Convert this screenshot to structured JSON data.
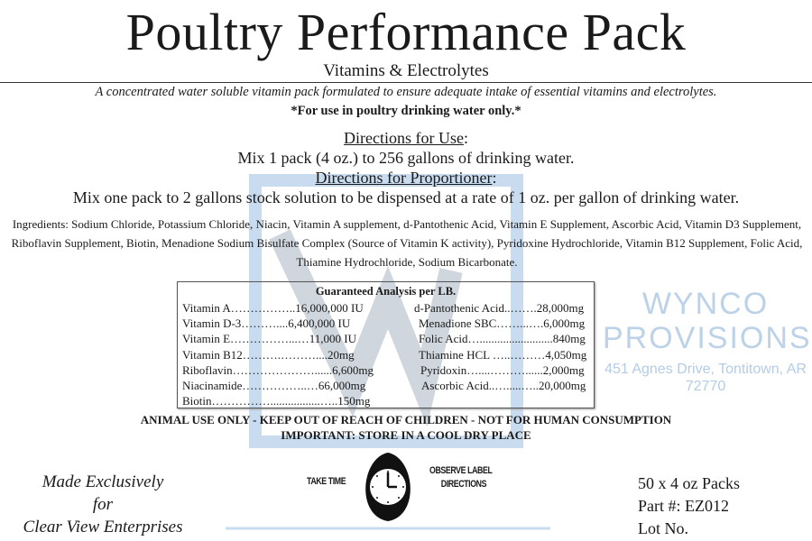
{
  "title": "Poultry Performance Pack",
  "subtitle": "Vitamins & Electrolytes",
  "description": "A concentrated water soluble vitamin pack formulated to ensure adequate intake of essential vitamins and electrolytes.",
  "use_note": "*For use in poultry drinking water only.*",
  "directions": {
    "use_heading": "Directions for Use",
    "use_text": "Mix 1 pack (4 oz.) to 256 gallons of drinking water.",
    "proportioner_heading": "Directions for Proportioner",
    "proportioner_text": "Mix one pack to 2 gallons stock solution to be dispensed at a rate of 1 oz. per gallon of drinking water."
  },
  "ingredients": "Ingredients:  Sodium Chloride, Potassium Chloride, Niacin, Vitamin A supplement, d-Pantothenic Acid, Vitamin E Supplement, Ascorbic Acid, Vitamin D3 Supplement, Riboflavin Supplement, Biotin, Menadione Sodium Bisulfate Complex (Source of Vitamin K activity), Pyridoxine Hydrochloride, Vitamin B12 Supplement, Folic Acid, Thiamine Hydrochloride, Sodium Bicarbonate.",
  "analysis": {
    "heading": "Guaranteed Analysis per LB.",
    "left": [
      "Vitamin A……………..16,000,000 IU",
      "Vitamin D-3………....6,400,000 IU",
      "Vitamin E……………...…11,000 IU",
      "Vitamin B12……….………....20mg",
      "Riboflavin…………………......6,600mg",
      "Niacinamide……………..…66,000mg",
      "Biotin…………….................…..150mg"
    ],
    "right": [
      "d-Pantothenic Acid..…….28,000mg",
      "Menadione SBC……...….6,000mg",
      "Folic Acid….........................840mg",
      "Thiamine HCL …..………4,050mg",
      "Pyridoxin…....………......2,000mg",
      "Ascorbic Acid..….....…..20,000mg"
    ]
  },
  "warnings": [
    "ANIMAL USE ONLY - KEEP OUT OF REACH OF CHILDREN - NOT FOR HUMAN CONSUMPTION",
    "IMPORTANT:  STORE IN A COOL DRY PLACE"
  ],
  "made_for": [
    "Made Exclusively",
    "for",
    "Clear View Enterprises"
  ],
  "logo": {
    "left": "TAKE TIME",
    "right": [
      "OBSERVE LABEL",
      "DIRECTIONS"
    ]
  },
  "watermark": {
    "name": "WYNCO PROVISIONS",
    "address": "451 Agnes Drive, Tontitown, AR 72770",
    "color": "#a9c6e3"
  },
  "product_info": [
    "50 x 4 oz Packs",
    "Part #: EZ012",
    "Lot No."
  ]
}
